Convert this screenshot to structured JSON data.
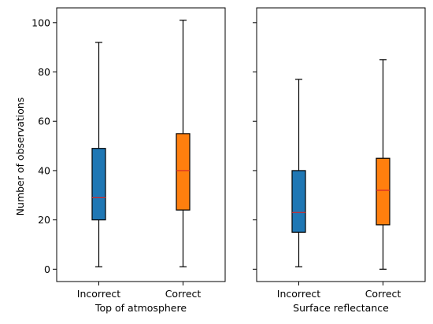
{
  "chart_data": [
    {
      "type": "box",
      "xlabel": "Top of atmosphere",
      "ylabel": "Number of observations",
      "ylim": [
        -5,
        106
      ],
      "yticks": [
        0,
        20,
        40,
        60,
        80,
        100
      ],
      "categories": [
        "Incorrect",
        "Correct"
      ],
      "boxes": [
        {
          "category": "Incorrect",
          "whisker_low": 1,
          "q1": 20,
          "median": 29,
          "q3": 49,
          "whisker_high": 92,
          "color": "#1f77b4"
        },
        {
          "category": "Correct",
          "whisker_low": 1,
          "q1": 24,
          "median": 40,
          "q3": 55,
          "whisker_high": 101,
          "color": "#ff7f0e"
        }
      ]
    },
    {
      "type": "box",
      "xlabel": "Surface reflectance",
      "ylabel": "",
      "ylim": [
        -5,
        106
      ],
      "yticks": [
        0,
        20,
        40,
        60,
        80,
        100
      ],
      "categories": [
        "Incorrect",
        "Correct"
      ],
      "boxes": [
        {
          "category": "Incorrect",
          "whisker_low": 1,
          "q1": 15,
          "median": 23,
          "q3": 40,
          "whisker_high": 77,
          "color": "#1f77b4"
        },
        {
          "category": "Correct",
          "whisker_low": 0,
          "q1": 18,
          "median": 32,
          "q3": 45,
          "whisker_high": 85,
          "color": "#ff7f0e"
        }
      ]
    }
  ],
  "median_color": "#d62728"
}
